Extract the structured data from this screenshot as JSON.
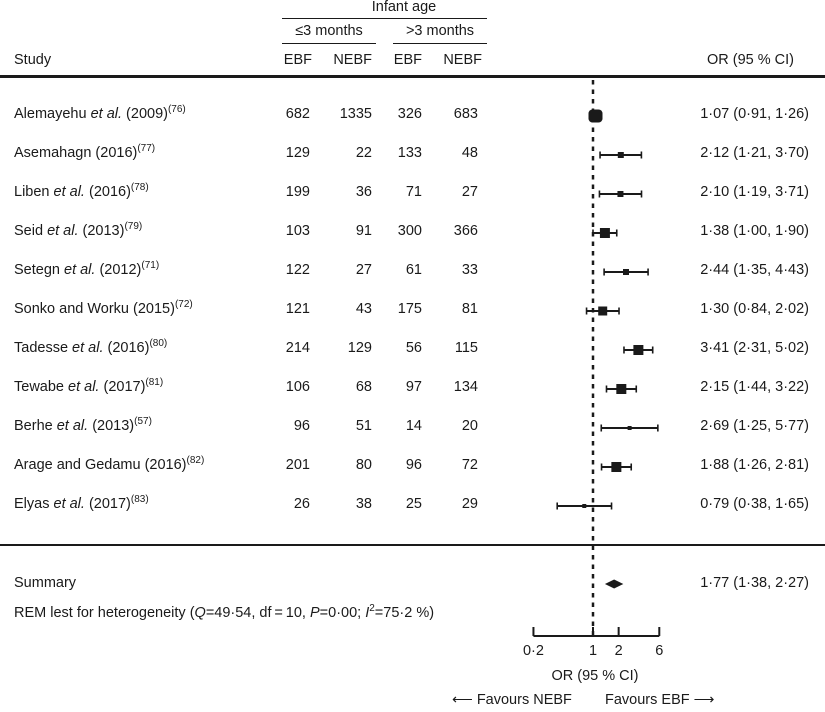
{
  "header": {
    "group_title": "Infant age",
    "group_le3": "≤3 months",
    "group_gt3": ">3 months",
    "study_label": "Study",
    "col_ebf_1": "EBF",
    "col_nebf_1": "NEBF",
    "col_ebf_2": "EBF",
    "col_nebf_2": "NEBF",
    "or_label": "OR (95 % CI)"
  },
  "studies": [
    {
      "author": "Alemayehu",
      "etal": true,
      "year": "(2009)",
      "ref": "(76)",
      "le3_ebf": "682",
      "le3_nebf": "1335",
      "gt3_ebf": "326",
      "gt3_nebf": "683",
      "or_text": "1·07 (0·91, 1·26)"
    },
    {
      "author": "Asemahagn",
      "etal": false,
      "year": "(2016)",
      "ref": "(77)",
      "le3_ebf": "129",
      "le3_nebf": "22",
      "gt3_ebf": "133",
      "gt3_nebf": "48",
      "or_text": "2·12 (1·21, 3·70)"
    },
    {
      "author": "Liben",
      "etal": true,
      "year": "(2016)",
      "ref": "(78)",
      "le3_ebf": "199",
      "le3_nebf": "36",
      "gt3_ebf": "71",
      "gt3_nebf": "27",
      "or_text": "2·10 (1·19, 3·71)"
    },
    {
      "author": "Seid",
      "etal": true,
      "year": "(2013)",
      "ref": "(79)",
      "le3_ebf": "103",
      "le3_nebf": "91",
      "gt3_ebf": "300",
      "gt3_nebf": "366",
      "or_text": "1·38 (1·00, 1·90)"
    },
    {
      "author": "Setegn",
      "etal": true,
      "year": "(2012)",
      "ref": "(71)",
      "le3_ebf": "122",
      "le3_nebf": "27",
      "gt3_ebf": "61",
      "gt3_nebf": "33",
      "or_text": "2·44 (1·35, 4·43)"
    },
    {
      "author": "Sonko and Worku",
      "etal": false,
      "year": "(2015)",
      "ref": "(72)",
      "le3_ebf": "121",
      "le3_nebf": "43",
      "gt3_ebf": "175",
      "gt3_nebf": "81",
      "or_text": "1·30 (0·84, 2·02)"
    },
    {
      "author": "Tadesse",
      "etal": true,
      "year": "(2016)",
      "ref": "(80)",
      "le3_ebf": "214",
      "le3_nebf": "129",
      "gt3_ebf": "56",
      "gt3_nebf": "115",
      "or_text": "3·41 (2·31, 5·02)"
    },
    {
      "author": "Tewabe",
      "etal": true,
      "year": "(2017)",
      "ref": "(81)",
      "le3_ebf": "106",
      "le3_nebf": "68",
      "gt3_ebf": "97",
      "gt3_nebf": "134",
      "or_text": "2·15 (1·44, 3·22)"
    },
    {
      "author": "Berhe",
      "etal": true,
      "year": "(2013)",
      "ref": "(57)",
      "le3_ebf": "96",
      "le3_nebf": "51",
      "gt3_ebf": "14",
      "gt3_nebf": "20",
      "or_text": "2·69 (1·25, 5·77)"
    },
    {
      "author": "Arage and Gedamu",
      "etal": false,
      "year": "(2016)",
      "ref": "(82)",
      "le3_ebf": "201",
      "le3_nebf": "80",
      "gt3_ebf": "96",
      "gt3_nebf": "72",
      "or_text": "1·88 (1·26, 2·81)"
    },
    {
      "author": "Elyas",
      "etal": true,
      "year": "(2017)",
      "ref": "(83)",
      "le3_ebf": "26",
      "le3_nebf": "38",
      "gt3_ebf": "25",
      "gt3_nebf": "29",
      "or_text": "0·79 (0·38, 1·65)"
    }
  ],
  "etal_text": "et al.",
  "summary": {
    "label": "Summary",
    "or_text": "1·77 (1·38, 2·27)",
    "heterogeneity_prefix": "REM lest for heterogeneity (",
    "q_label": "Q",
    "q_value": "=49·54, df = 10, ",
    "p_label": "P",
    "p_value": "=0·00; ",
    "i2_label": "I",
    "i2_sup": "2",
    "i2_value": "=75·2 %)"
  },
  "axis": {
    "ticks": [
      "0·2",
      "1",
      "2",
      "6"
    ],
    "label": "OR (95 % CI)",
    "favours_left": "⟵ Favours NEBF",
    "favours_right": "Favours EBF ⟶"
  },
  "chart_data": {
    "type": "forest",
    "title": "",
    "xlabel": "OR (95 % CI)",
    "x_scale": "log",
    "xlim": [
      0.2,
      6
    ],
    "x_ticks": [
      0.2,
      1,
      2,
      6
    ],
    "reference_line": 1,
    "categories": [
      "Alemayehu et al. (2009)",
      "Asemahagn (2016)",
      "Liben et al. (2016)",
      "Seid et al. (2013)",
      "Setegn et al. (2012)",
      "Sonko and Worku (2015)",
      "Tadesse et al. (2016)",
      "Tewabe et al. (2017)",
      "Berhe et al. (2013)",
      "Arage and Gedamu (2016)",
      "Elyas et al. (2017)"
    ],
    "series": [
      {
        "name": "OR",
        "values": [
          1.07,
          2.12,
          2.1,
          1.38,
          2.44,
          1.3,
          3.41,
          2.15,
          2.69,
          1.88,
          0.79
        ]
      },
      {
        "name": "CI_lower",
        "values": [
          0.91,
          1.21,
          1.19,
          1.0,
          1.35,
          0.84,
          2.31,
          1.44,
          1.25,
          1.26,
          0.38
        ]
      },
      {
        "name": "CI_upper",
        "values": [
          1.26,
          3.7,
          3.71,
          1.9,
          4.43,
          2.02,
          5.02,
          3.22,
          5.77,
          2.81,
          1.65
        ]
      }
    ],
    "weights_marker_size": [
      13,
      6,
      6,
      10,
      6,
      9,
      10,
      10,
      4,
      10,
      4
    ],
    "summary": {
      "label": "Summary",
      "or": 1.77,
      "ci_lower": 1.38,
      "ci_upper": 2.27
    },
    "heterogeneity": {
      "Q": 49.54,
      "df": 10,
      "P": 0.0,
      "I2_percent": 75.2
    },
    "legend_left": "Favours NEBF",
    "legend_right": "Favours EBF",
    "table_columns": [
      "Study",
      "≤3 months EBF",
      "≤3 months NEBF",
      ">3 months EBF",
      ">3 months NEBF",
      "OR (95 % CI)"
    ]
  }
}
